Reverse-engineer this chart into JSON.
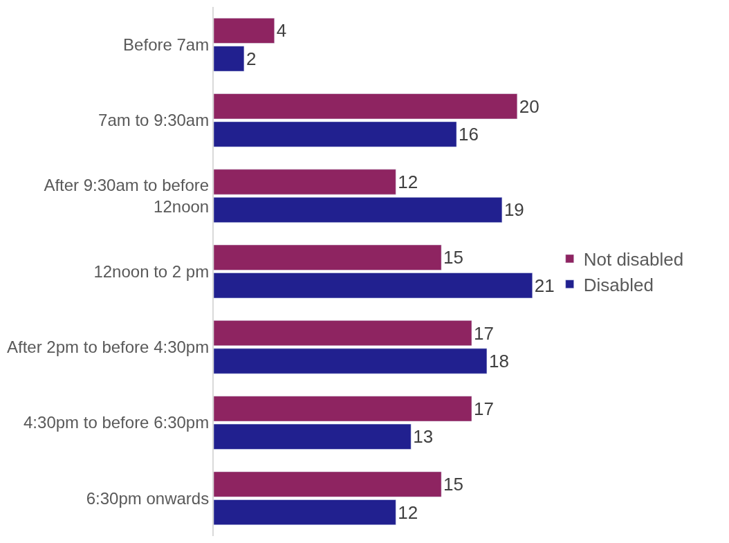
{
  "chart_data": {
    "type": "bar",
    "orientation": "horizontal",
    "categories": [
      "Before 7am",
      "7am to 9:30am",
      "After 9:30am to before 12noon",
      "12noon to 2 pm",
      "After 2pm to before 4:30pm",
      "4:30pm to before 6:30pm",
      "6:30pm onwards"
    ],
    "series": [
      {
        "name": "Not disabled",
        "color": "#8e2461",
        "values": [
          4,
          20,
          12,
          15,
          17,
          17,
          15
        ]
      },
      {
        "name": "Disabled",
        "color": "#21208f",
        "values": [
          2,
          16,
          19,
          21,
          18,
          13,
          12
        ]
      }
    ],
    "data_labels": true,
    "legend": "right",
    "tick_labels": "y"
  }
}
